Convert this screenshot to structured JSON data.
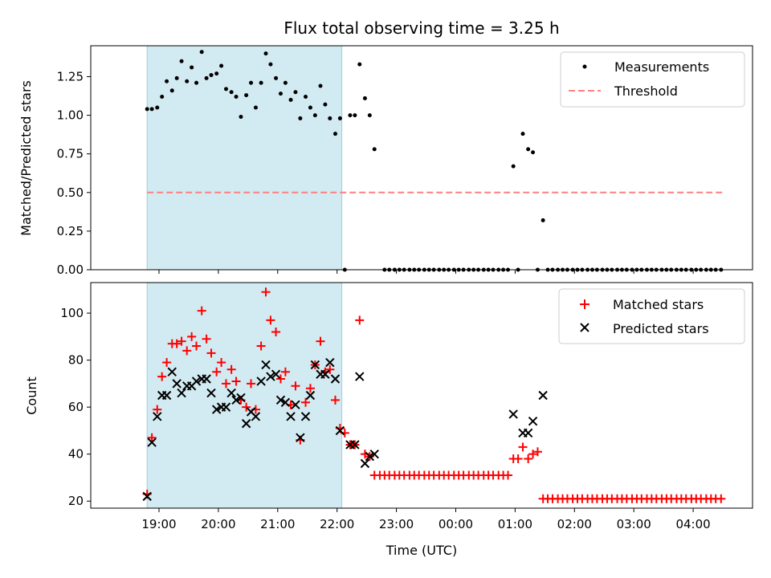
{
  "chart_data": [
    {
      "type": "scatter",
      "title": "Flux total observing time = 3.25 h",
      "xlabel": "",
      "ylabel": "Matched/Predicted stars",
      "ylim": [
        0.0,
        1.45
      ],
      "yticks": [
        "0.00",
        "0.25",
        "0.50",
        "0.75",
        "1.00",
        "1.25"
      ],
      "shaded_interval_hours": [
        18.8,
        22.08
      ],
      "threshold": {
        "label": "Threshold",
        "value": 0.5,
        "x_range_hours": [
          18.8,
          28.5
        ],
        "color": "#ff8080"
      },
      "legend": [
        {
          "label": "Measurements",
          "marker": "dot",
          "color": "#000000"
        },
        {
          "label": "Threshold",
          "marker": "dashed-line",
          "color": "#ff8080"
        }
      ],
      "measurements": [
        [
          18.8,
          1.04
        ],
        [
          18.88,
          1.04
        ],
        [
          18.97,
          1.05
        ],
        [
          19.05,
          1.12
        ],
        [
          19.13,
          1.22
        ],
        [
          19.22,
          1.16
        ],
        [
          19.3,
          1.24
        ],
        [
          19.38,
          1.35
        ],
        [
          19.47,
          1.22
        ],
        [
          19.55,
          1.31
        ],
        [
          19.63,
          1.21
        ],
        [
          19.72,
          1.41
        ],
        [
          19.8,
          1.24
        ],
        [
          19.88,
          1.26
        ],
        [
          19.97,
          1.27
        ],
        [
          20.05,
          1.32
        ],
        [
          20.13,
          1.17
        ],
        [
          20.22,
          1.15
        ],
        [
          20.3,
          1.12
        ],
        [
          20.38,
          0.99
        ],
        [
          20.47,
          1.13
        ],
        [
          20.55,
          1.21
        ],
        [
          20.63,
          1.05
        ],
        [
          20.72,
          1.21
        ],
        [
          20.8,
          1.4
        ],
        [
          20.88,
          1.33
        ],
        [
          20.97,
          1.24
        ],
        [
          21.05,
          1.14
        ],
        [
          21.13,
          1.21
        ],
        [
          21.22,
          1.1
        ],
        [
          21.3,
          1.15
        ],
        [
          21.38,
          0.98
        ],
        [
          21.47,
          1.12
        ],
        [
          21.55,
          1.05
        ],
        [
          21.63,
          1.0
        ],
        [
          21.72,
          1.19
        ],
        [
          21.8,
          1.07
        ],
        [
          21.88,
          0.98
        ],
        [
          21.97,
          0.88
        ],
        [
          22.05,
          0.98
        ],
        [
          22.13,
          0.0
        ],
        [
          22.22,
          1.0
        ],
        [
          22.3,
          1.0
        ],
        [
          22.38,
          1.33
        ],
        [
          22.47,
          1.11
        ],
        [
          22.55,
          1.0
        ],
        [
          22.63,
          0.78
        ],
        [
          22.8,
          0.0
        ],
        [
          22.88,
          0.0
        ],
        [
          22.97,
          0.0
        ],
        [
          23.05,
          0.0
        ],
        [
          23.13,
          0.0
        ],
        [
          23.22,
          0.0
        ],
        [
          23.3,
          0.0
        ],
        [
          23.38,
          0.0
        ],
        [
          23.47,
          0.0
        ],
        [
          23.55,
          0.0
        ],
        [
          23.63,
          0.0
        ],
        [
          23.72,
          0.0
        ],
        [
          23.8,
          0.0
        ],
        [
          23.88,
          0.0
        ],
        [
          23.97,
          0.0
        ],
        [
          24.05,
          0.0
        ],
        [
          24.13,
          0.0
        ],
        [
          24.22,
          0.0
        ],
        [
          24.3,
          0.0
        ],
        [
          24.38,
          0.0
        ],
        [
          24.47,
          0.0
        ],
        [
          24.55,
          0.0
        ],
        [
          24.63,
          0.0
        ],
        [
          24.72,
          0.0
        ],
        [
          24.8,
          0.0
        ],
        [
          24.88,
          0.0
        ],
        [
          24.97,
          0.67
        ],
        [
          25.05,
          0.0
        ],
        [
          25.13,
          0.88
        ],
        [
          25.22,
          0.78
        ],
        [
          25.3,
          0.76
        ],
        [
          25.38,
          0.0
        ],
        [
          25.47,
          0.32
        ],
        [
          25.55,
          0.0
        ],
        [
          25.63,
          0.0
        ],
        [
          25.72,
          0.0
        ],
        [
          25.8,
          0.0
        ],
        [
          25.88,
          0.0
        ],
        [
          25.97,
          0.0
        ],
        [
          26.05,
          0.0
        ],
        [
          26.13,
          0.0
        ],
        [
          26.22,
          0.0
        ],
        [
          26.3,
          0.0
        ],
        [
          26.38,
          0.0
        ],
        [
          26.47,
          0.0
        ],
        [
          26.55,
          0.0
        ],
        [
          26.63,
          0.0
        ],
        [
          26.72,
          0.0
        ],
        [
          26.8,
          0.0
        ],
        [
          26.88,
          0.0
        ],
        [
          26.97,
          0.0
        ],
        [
          27.05,
          0.0
        ],
        [
          27.13,
          0.0
        ],
        [
          27.22,
          0.0
        ],
        [
          27.3,
          0.0
        ],
        [
          27.38,
          0.0
        ],
        [
          27.47,
          0.0
        ],
        [
          27.55,
          0.0
        ],
        [
          27.63,
          0.0
        ],
        [
          27.72,
          0.0
        ],
        [
          27.8,
          0.0
        ],
        [
          27.88,
          0.0
        ],
        [
          27.97,
          0.0
        ],
        [
          28.05,
          0.0
        ],
        [
          28.13,
          0.0
        ],
        [
          28.22,
          0.0
        ],
        [
          28.3,
          0.0
        ],
        [
          28.38,
          0.0
        ],
        [
          28.47,
          0.0
        ]
      ]
    },
    {
      "type": "scatter",
      "title": "",
      "xlabel": "Time (UTC)",
      "ylabel": "Count",
      "ylim": [
        17,
        113
      ],
      "yticks": [
        "20",
        "40",
        "60",
        "80",
        "100"
      ],
      "xlim_hours": [
        17.85,
        29.0
      ],
      "xticks": [
        {
          "hour": 19,
          "label": "19:00"
        },
        {
          "hour": 20,
          "label": "20:00"
        },
        {
          "hour": 21,
          "label": "21:00"
        },
        {
          "hour": 22,
          "label": "22:00"
        },
        {
          "hour": 23,
          "label": "23:00"
        },
        {
          "hour": 24,
          "label": "00:00"
        },
        {
          "hour": 25,
          "label": "01:00"
        },
        {
          "hour": 26,
          "label": "02:00"
        },
        {
          "hour": 27,
          "label": "03:00"
        },
        {
          "hour": 28,
          "label": "04:00"
        }
      ],
      "shaded_interval_hours": [
        18.8,
        22.08
      ],
      "legend": [
        {
          "label": "Matched stars",
          "marker": "plus",
          "color": "#ff0000"
        },
        {
          "label": "Predicted stars",
          "marker": "x",
          "color": "#000000"
        }
      ],
      "matched": [
        [
          18.8,
          23
        ],
        [
          18.88,
          47
        ],
        [
          18.97,
          59
        ],
        [
          19.05,
          73
        ],
        [
          19.13,
          79
        ],
        [
          19.22,
          87
        ],
        [
          19.3,
          87
        ],
        [
          19.38,
          88
        ],
        [
          19.47,
          84
        ],
        [
          19.55,
          90
        ],
        [
          19.63,
          86
        ],
        [
          19.72,
          101
        ],
        [
          19.8,
          89
        ],
        [
          19.88,
          83
        ],
        [
          19.97,
          75
        ],
        [
          20.05,
          79
        ],
        [
          20.13,
          70
        ],
        [
          20.22,
          76
        ],
        [
          20.3,
          71
        ],
        [
          20.38,
          63
        ],
        [
          20.47,
          60
        ],
        [
          20.55,
          70
        ],
        [
          20.63,
          59
        ],
        [
          20.72,
          86
        ],
        [
          20.8,
          109
        ],
        [
          20.88,
          97
        ],
        [
          20.97,
          92
        ],
        [
          21.05,
          72
        ],
        [
          21.13,
          75
        ],
        [
          21.22,
          61
        ],
        [
          21.3,
          69
        ],
        [
          21.38,
          46
        ],
        [
          21.47,
          62
        ],
        [
          21.55,
          68
        ],
        [
          21.63,
          78
        ],
        [
          21.72,
          88
        ],
        [
          21.8,
          75
        ],
        [
          21.88,
          76
        ],
        [
          21.97,
          63
        ],
        [
          22.05,
          51
        ],
        [
          22.13,
          49
        ],
        [
          22.22,
          44
        ],
        [
          22.3,
          44
        ],
        [
          22.38,
          97
        ],
        [
          22.47,
          40
        ],
        [
          22.55,
          39
        ],
        [
          22.63,
          31
        ],
        [
          22.72,
          31
        ],
        [
          22.8,
          31
        ],
        [
          22.88,
          31
        ],
        [
          22.97,
          31
        ],
        [
          23.05,
          31
        ],
        [
          23.13,
          31
        ],
        [
          23.22,
          31
        ],
        [
          23.3,
          31
        ],
        [
          23.38,
          31
        ],
        [
          23.47,
          31
        ],
        [
          23.55,
          31
        ],
        [
          23.63,
          31
        ],
        [
          23.72,
          31
        ],
        [
          23.8,
          31
        ],
        [
          23.88,
          31
        ],
        [
          23.97,
          31
        ],
        [
          24.05,
          31
        ],
        [
          24.13,
          31
        ],
        [
          24.22,
          31
        ],
        [
          24.3,
          31
        ],
        [
          24.38,
          31
        ],
        [
          24.47,
          31
        ],
        [
          24.55,
          31
        ],
        [
          24.63,
          31
        ],
        [
          24.72,
          31
        ],
        [
          24.8,
          31
        ],
        [
          24.88,
          31
        ],
        [
          24.97,
          38
        ],
        [
          25.05,
          38
        ],
        [
          25.13,
          43
        ],
        [
          25.22,
          38
        ],
        [
          25.3,
          40
        ],
        [
          25.38,
          41
        ],
        [
          25.47,
          21
        ],
        [
          25.55,
          21
        ],
        [
          25.63,
          21
        ],
        [
          25.72,
          21
        ],
        [
          25.8,
          21
        ],
        [
          25.88,
          21
        ],
        [
          25.97,
          21
        ],
        [
          26.05,
          21
        ],
        [
          26.13,
          21
        ],
        [
          26.22,
          21
        ],
        [
          26.3,
          21
        ],
        [
          26.38,
          21
        ],
        [
          26.47,
          21
        ],
        [
          26.55,
          21
        ],
        [
          26.63,
          21
        ],
        [
          26.72,
          21
        ],
        [
          26.8,
          21
        ],
        [
          26.88,
          21
        ],
        [
          26.97,
          21
        ],
        [
          27.05,
          21
        ],
        [
          27.13,
          21
        ],
        [
          27.22,
          21
        ],
        [
          27.3,
          21
        ],
        [
          27.38,
          21
        ],
        [
          27.47,
          21
        ],
        [
          27.55,
          21
        ],
        [
          27.63,
          21
        ],
        [
          27.72,
          21
        ],
        [
          27.8,
          21
        ],
        [
          27.88,
          21
        ],
        [
          27.97,
          21
        ],
        [
          28.05,
          21
        ],
        [
          28.13,
          21
        ],
        [
          28.22,
          21
        ],
        [
          28.3,
          21
        ],
        [
          28.38,
          21
        ],
        [
          28.47,
          21
        ]
      ],
      "predicted": [
        [
          18.8,
          22
        ],
        [
          18.88,
          45
        ],
        [
          18.97,
          56
        ],
        [
          19.05,
          65
        ],
        [
          19.13,
          65
        ],
        [
          19.22,
          75
        ],
        [
          19.3,
          70
        ],
        [
          19.38,
          66
        ],
        [
          19.47,
          69
        ],
        [
          19.55,
          69
        ],
        [
          19.63,
          71
        ],
        [
          19.72,
          72
        ],
        [
          19.8,
          72
        ],
        [
          19.88,
          66
        ],
        [
          19.97,
          59
        ],
        [
          20.05,
          60
        ],
        [
          20.13,
          60
        ],
        [
          20.22,
          66
        ],
        [
          20.3,
          63
        ],
        [
          20.38,
          64
        ],
        [
          20.47,
          53
        ],
        [
          20.55,
          58
        ],
        [
          20.63,
          56
        ],
        [
          20.72,
          71
        ],
        [
          20.8,
          78
        ],
        [
          20.88,
          73
        ],
        [
          20.97,
          74
        ],
        [
          21.05,
          63
        ],
        [
          21.13,
          62
        ],
        [
          21.22,
          56
        ],
        [
          21.3,
          61
        ],
        [
          21.38,
          47
        ],
        [
          21.47,
          56
        ],
        [
          21.55,
          65
        ],
        [
          21.63,
          78
        ],
        [
          21.72,
          74
        ],
        [
          21.8,
          74
        ],
        [
          21.88,
          79
        ],
        [
          21.97,
          72
        ],
        [
          22.05,
          50
        ],
        [
          22.22,
          44
        ],
        [
          22.3,
          44
        ],
        [
          22.38,
          73
        ],
        [
          22.47,
          36
        ],
        [
          22.55,
          39
        ],
        [
          22.63,
          40
        ],
        [
          24.97,
          57
        ],
        [
          25.13,
          49
        ],
        [
          25.22,
          49
        ],
        [
          25.3,
          54
        ],
        [
          25.47,
          65
        ]
      ]
    }
  ]
}
